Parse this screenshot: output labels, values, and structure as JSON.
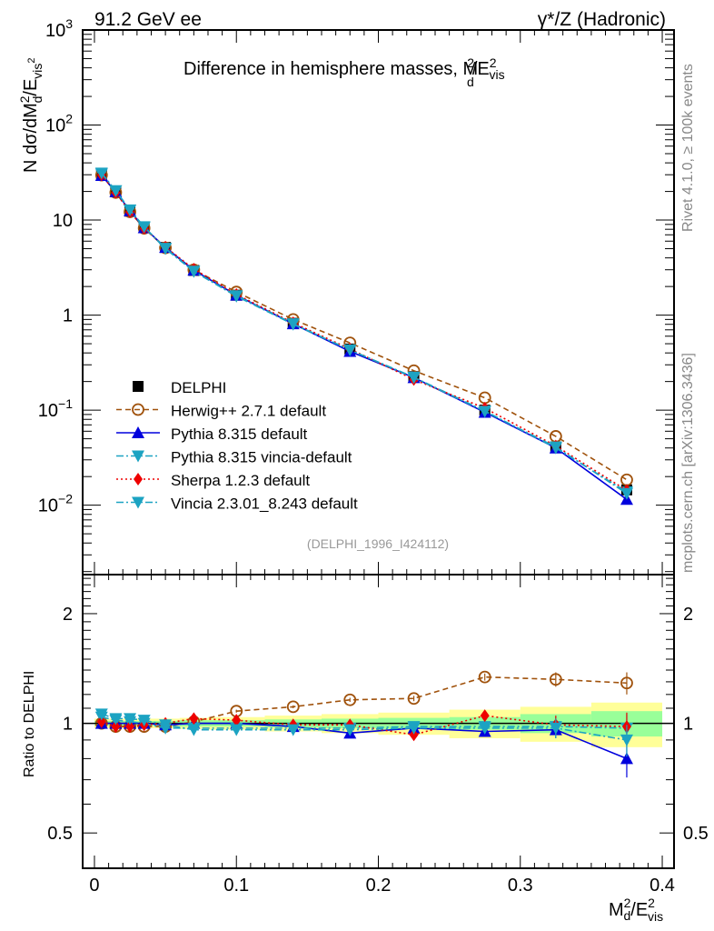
{
  "header": {
    "left_label": "91.2 GeV ee",
    "right_label": "γ*/Z (Hadronic)"
  },
  "side_labels": {
    "rivet": "Rivet 4.1.0, ≥ 100k events",
    "mcplots": "mcplots.cern.ch [arXiv:1306.3436]"
  },
  "chart_data": [
    {
      "type": "line",
      "panel": "main",
      "title": "Difference in hemisphere masses, M_d^2/E_vis^2",
      "title_main": "Difference in hemisphere masses, M",
      "title_sup": "2",
      "title_sub": "d",
      "title_tail": "/E",
      "title_tail_sup": "2",
      "title_tail_sub": "vis",
      "ylabel": "N  dσ/dM_d^2/E_vis^2",
      "ylabel_parts": {
        "pre": "N  dσ/dM",
        "sup1": "2",
        "sub1": "d",
        "mid": "/E",
        "sub2": "vis",
        "sup2": "2"
      },
      "yscale": "log",
      "ylim": [
        0.00186,
        1000
      ],
      "xlim": [
        -0.0083,
        0.4083
      ],
      "ytick_labels": [
        {
          "value": 1000,
          "base": "10",
          "exp": "3"
        },
        {
          "value": 100,
          "base": "10",
          "exp": "2"
        },
        {
          "value": 10,
          "base": "10",
          "exp": ""
        },
        {
          "value": 1,
          "base": "1",
          "exp": ""
        },
        {
          "value": 0.1,
          "base": "10",
          "exp": "−1"
        },
        {
          "value": 0.01,
          "base": "10",
          "exp": "−2"
        }
      ],
      "watermark": "(DELPHI_1996_I424112)",
      "legend_position": "center-left",
      "x": [
        0.005,
        0.015,
        0.025,
        0.035,
        0.05,
        0.07,
        0.1,
        0.14,
        0.18,
        0.225,
        0.275,
        0.325,
        0.375
      ],
      "bin_edges": [
        0,
        0.01,
        0.02,
        0.03,
        0.04,
        0.06,
        0.08,
        0.12,
        0.16,
        0.2,
        0.25,
        0.3,
        0.35,
        0.4
      ],
      "series": [
        {
          "name": "DELPHI",
          "color": "#000000",
          "marker": "square",
          "line": "none",
          "values": [
            29.5,
            19.8,
            12.4,
            8.3,
            5.15,
            2.95,
            1.62,
            0.82,
            0.44,
            0.225,
            0.1,
            0.041,
            0.0145
          ]
        },
        {
          "name": "Herwig++ 2.7.1 default",
          "color": "#a0520c",
          "marker": "open-circle",
          "line": "dashed",
          "values": [
            29.7,
            19.5,
            12.2,
            8.2,
            5.1,
            3.0,
            1.75,
            0.9,
            0.51,
            0.26,
            0.135,
            0.053,
            0.0185
          ]
        },
        {
          "name": "Pythia 8.315 default",
          "color": "#0000dd",
          "marker": "triangle-up",
          "line": "solid",
          "values": [
            29.5,
            19.9,
            12.5,
            8.3,
            5.15,
            2.97,
            1.62,
            0.81,
            0.415,
            0.22,
            0.095,
            0.04,
            0.0115
          ]
        },
        {
          "name": "Pythia 8.315 vincia-default",
          "color": "#1ca3c2",
          "marker": "triangle-down",
          "line": "dashdot",
          "values": [
            30.5,
            20.3,
            12.7,
            8.4,
            5.0,
            2.88,
            1.58,
            0.8,
            0.43,
            0.222,
            0.098,
            0.04,
            0.0138
          ]
        },
        {
          "name": "Sherpa 1.2.3 default",
          "color": "#ee0000",
          "marker": "diamond",
          "line": "dotted",
          "values": [
            29.9,
            19.5,
            12.2,
            8.2,
            5.2,
            3.05,
            1.65,
            0.83,
            0.44,
            0.21,
            0.105,
            0.042,
            0.0143
          ]
        },
        {
          "name": "Vincia 2.3.01_8.243 default",
          "color": "#1ca3c2",
          "marker": "triangle-down",
          "line": "dashdot",
          "values": [
            31.2,
            20.4,
            12.8,
            8.5,
            5.05,
            2.9,
            1.6,
            0.81,
            0.43,
            0.22,
            0.097,
            0.041,
            0.0133
          ]
        }
      ]
    },
    {
      "type": "line",
      "panel": "ratio",
      "ylabel": "Ratio to DELPHI",
      "xlabel": "M_d^2/E_vis^2",
      "xlabel_parts": {
        "pre": "M",
        "sup1": "2",
        "sub1": "d",
        "mid": "/E",
        "sup2": "2",
        "sub2": "vis"
      },
      "yscale": "log",
      "ylim": [
        0.4,
        2.56
      ],
      "xlim": [
        -0.0083,
        0.4083
      ],
      "ytick_labels": [
        {
          "value": 2,
          "label": "2"
        },
        {
          "value": 1,
          "label": "1"
        },
        {
          "value": 0.5,
          "label": "0.5"
        }
      ],
      "xtick_labels": [
        {
          "value": 0,
          "label": "0"
        },
        {
          "value": 0.1,
          "label": "0.1"
        },
        {
          "value": 0.2,
          "label": "0.2"
        },
        {
          "value": 0.3,
          "label": "0.3"
        },
        {
          "value": 0.4,
          "label": "0.4"
        }
      ],
      "x": [
        0.005,
        0.015,
        0.025,
        0.035,
        0.05,
        0.07,
        0.1,
        0.14,
        0.18,
        0.225,
        0.275,
        0.325,
        0.375
      ],
      "bin_edges": [
        0,
        0.01,
        0.02,
        0.03,
        0.04,
        0.06,
        0.08,
        0.12,
        0.16,
        0.2,
        0.25,
        0.3,
        0.35,
        0.4
      ],
      "band_inner": [
        0.015,
        0.015,
        0.015,
        0.015,
        0.015,
        0.02,
        0.02,
        0.025,
        0.03,
        0.035,
        0.04,
        0.06,
        0.08
      ],
      "band_outer": [
        0.03,
        0.03,
        0.03,
        0.03,
        0.03,
        0.035,
        0.04,
        0.05,
        0.06,
        0.07,
        0.09,
        0.11,
        0.14
      ],
      "series": [
        {
          "name": "Herwig++ 2.7.1 default",
          "color": "#a0520c",
          "marker": "open-circle",
          "line": "dashed",
          "values": [
            1.0,
            0.98,
            0.98,
            0.98,
            0.98,
            1.01,
            1.08,
            1.11,
            1.16,
            1.17,
            1.34,
            1.32,
            1.29
          ],
          "errors": [
            0.01,
            0.01,
            0.01,
            0.01,
            0.01,
            0.01,
            0.01,
            0.01,
            0.015,
            0.02,
            0.03,
            0.06,
            0.09
          ]
        },
        {
          "name": "Pythia 8.315 default",
          "color": "#0000dd",
          "marker": "triangle-up",
          "line": "solid",
          "values": [
            1.0,
            1.0,
            1.0,
            1.0,
            0.99,
            1.0,
            1.0,
            0.98,
            0.94,
            0.97,
            0.95,
            0.96,
            0.8
          ],
          "errors": [
            0.01,
            0.01,
            0.01,
            0.01,
            0.01,
            0.01,
            0.01,
            0.01,
            0.015,
            0.02,
            0.03,
            0.05,
            0.09
          ]
        },
        {
          "name": "Pythia 8.315 vincia-default",
          "color": "#1ca3c2",
          "marker": "triangle-down",
          "line": "dashdot",
          "values": [
            1.04,
            1.02,
            1.01,
            1.0,
            0.97,
            0.97,
            0.97,
            0.97,
            0.97,
            0.98,
            0.98,
            0.98,
            0.97
          ],
          "errors": [
            0.01,
            0.01,
            0.01,
            0.01,
            0.01,
            0.01,
            0.01,
            0.01,
            0.015,
            0.02,
            0.03,
            0.06,
            0.09
          ]
        },
        {
          "name": "Sherpa 1.2.3 default",
          "color": "#ee0000",
          "marker": "diamond",
          "line": "dotted",
          "values": [
            1.01,
            0.98,
            0.98,
            0.99,
            1.0,
            1.03,
            1.02,
            0.99,
            0.99,
            0.93,
            1.05,
            0.99,
            0.98
          ],
          "errors": [
            0.01,
            0.01,
            0.01,
            0.01,
            0.01,
            0.01,
            0.01,
            0.01,
            0.015,
            0.02,
            0.03,
            0.06,
            0.09
          ]
        },
        {
          "name": "Vincia 2.3.01_8.243 default",
          "color": "#1ca3c2",
          "marker": "triangle-down",
          "line": "dashdot",
          "values": [
            1.06,
            1.03,
            1.03,
            1.02,
            0.99,
            0.96,
            0.96,
            0.96,
            0.96,
            0.97,
            0.97,
            0.97,
            0.9
          ],
          "errors": [
            0.01,
            0.01,
            0.01,
            0.01,
            0.01,
            0.01,
            0.01,
            0.01,
            0.015,
            0.02,
            0.03,
            0.06,
            0.09
          ]
        }
      ]
    }
  ],
  "colors": {
    "band_inner": "#99ff99",
    "band_outer": "#ffff99",
    "watermark": "#999999",
    "side_text": "#888888"
  }
}
